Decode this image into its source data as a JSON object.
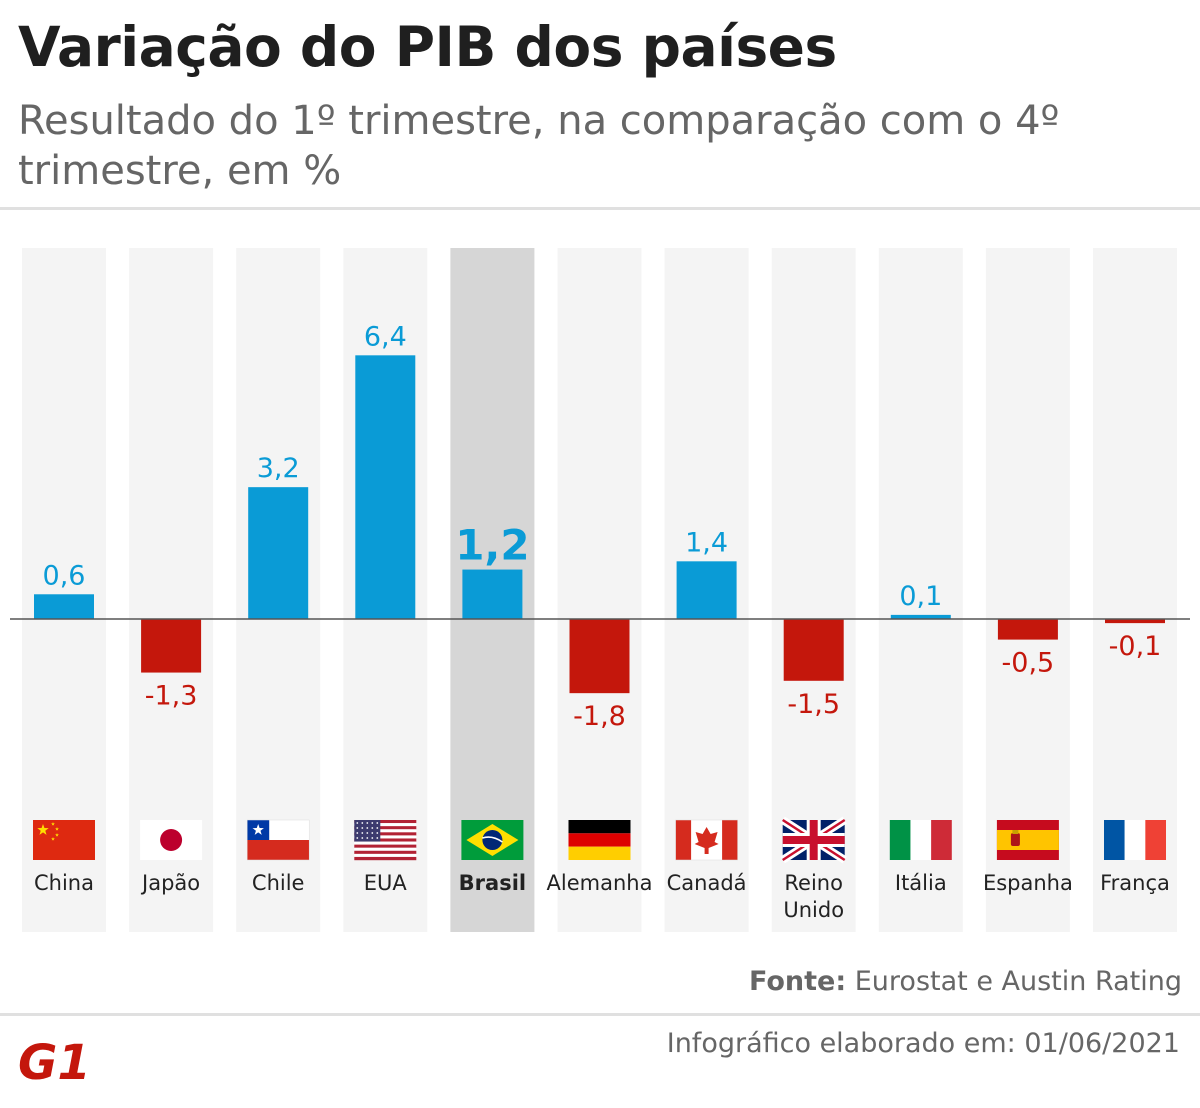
{
  "header": {
    "title": "Variação do PIB dos países",
    "subtitle": "Resultado do 1º trimestre, na comparação com o 4º trimestre, em %"
  },
  "chart_data": {
    "type": "bar",
    "title": "Variação do PIB dos países",
    "subtitle": "Resultado do 1º trimestre, na comparação com o 4º trimestre, em %",
    "categories": [
      "China",
      "Japão",
      "Chile",
      "EUA",
      "Brasil",
      "Alemanha",
      "Canadá",
      "Reino Unido",
      "Itália",
      "Espanha",
      "França"
    ],
    "values": [
      0.6,
      -1.3,
      3.2,
      6.4,
      1.2,
      -1.8,
      1.4,
      -1.5,
      0.1,
      -0.5,
      -0.1
    ],
    "labels": [
      "0,6",
      "-1,3",
      "3,2",
      "6,4",
      "1,2",
      "-1,8",
      "1,4",
      "-1,5",
      "0,1",
      "-0,5",
      "-0,1"
    ],
    "name_lines": [
      [
        "China"
      ],
      [
        "Japão"
      ],
      [
        "Chile"
      ],
      [
        "EUA"
      ],
      [
        "Brasil"
      ],
      [
        "Alemanha"
      ],
      [
        "Canadá"
      ],
      [
        "Reino",
        "Unido"
      ],
      [
        "Itália"
      ],
      [
        "Espanha"
      ],
      [
        "França"
      ]
    ],
    "flags": [
      "flag-china",
      "flag-japan",
      "flag-chile",
      "flag-usa",
      "flag-brazil",
      "flag-germany",
      "flag-canada",
      "flag-uk",
      "flag-italy",
      "flag-spain",
      "flag-france"
    ],
    "highlight": "Brasil",
    "ylim": [
      -2.3,
      9.1
    ],
    "xlabel": "",
    "ylabel": "",
    "grid": false,
    "legend": "none",
    "colors": {
      "positive": "#0a9bd6",
      "negative": "#c4170c",
      "column_bg": "#f4f4f4",
      "highlight_bg": "#d6d6d6",
      "baseline": "#555555"
    }
  },
  "footer": {
    "source_label": "Fonte:",
    "source_text": "Eurostat e Austin Rating",
    "credit": "Infográfico elaborado em: 01/06/2021",
    "logo_text": "G1",
    "logo_color": "#c4170c"
  }
}
